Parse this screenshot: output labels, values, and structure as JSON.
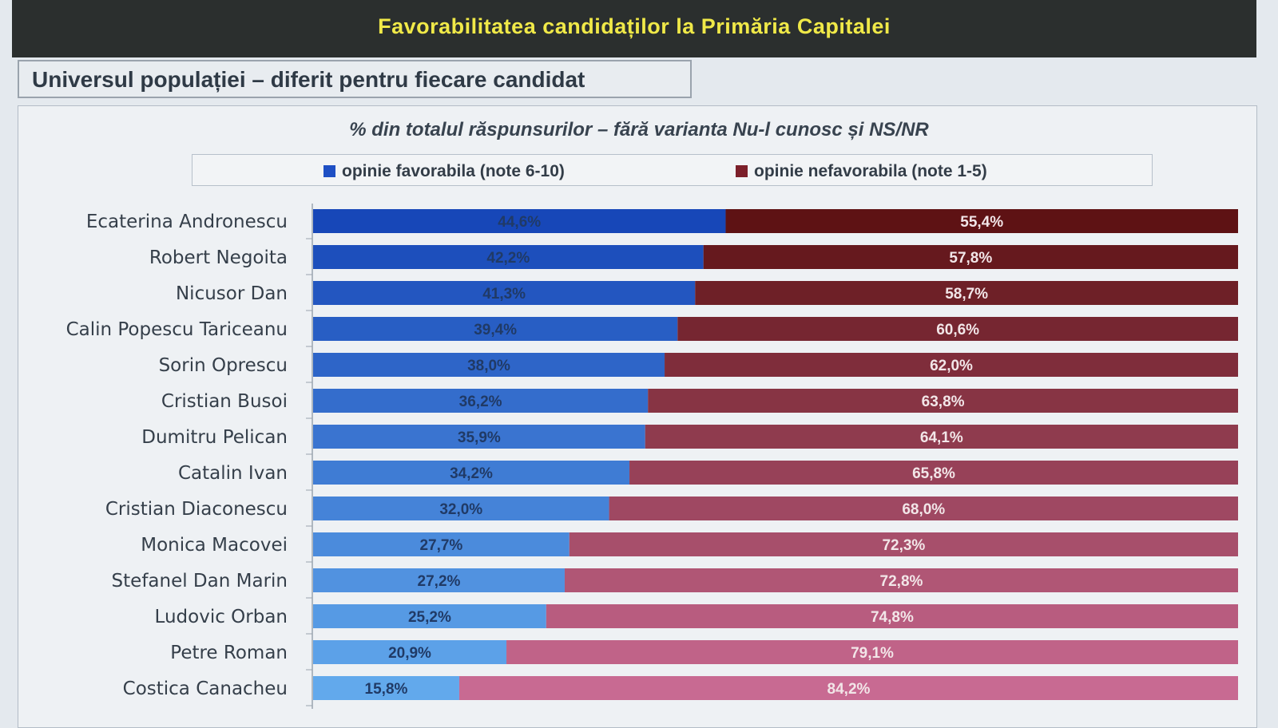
{
  "header": {
    "title": "Favorabilitatea candidaților la Primăria Capitalei",
    "subtitle": "Universul populației – diferit pentru fiecare candidat"
  },
  "colors": {
    "favorable_dark": "#1747b8",
    "favorable_light": "#62a9ec",
    "unfavorable_dark": "#5e1214",
    "unfavorable_light": "#c86a92",
    "title_yellow": "#f0e948"
  },
  "chart_data": {
    "type": "bar",
    "orientation": "horizontal",
    "stacked": true,
    "title": "% din totalul răspunsurilor – fără varianta Nu-l cunosc și NS/NR",
    "legend_position": "top",
    "categories": [
      "Ecaterina Andronescu",
      "Robert Negoita",
      "Nicusor Dan",
      "Calin Popescu Tariceanu",
      "Sorin Oprescu",
      "Cristian Busoi",
      "Dumitru Pelican",
      "Catalin Ivan",
      "Cristian Diaconescu",
      "Monica Macovei",
      "Stefanel Dan Marin",
      "Ludovic Orban",
      "Petre Roman",
      "Costica Canacheu"
    ],
    "series": [
      {
        "name": "opinie favorabila (note 6-10)",
        "values": [
          44.6,
          42.2,
          41.3,
          39.4,
          38.0,
          36.2,
          35.9,
          34.2,
          32.0,
          27.7,
          27.2,
          25.2,
          20.9,
          15.8
        ],
        "labels": [
          "44,6%",
          "42,2%",
          "41,3%",
          "39,4%",
          "38,0%",
          "36,2%",
          "35,9%",
          "34,2%",
          "32,0%",
          "27,7%",
          "27,2%",
          "25,2%",
          "20,9%",
          "15,8%"
        ]
      },
      {
        "name": "opinie nefavorabila (note 1-5)",
        "values": [
          55.4,
          57.8,
          58.7,
          60.6,
          62.0,
          63.8,
          64.1,
          65.8,
          68.0,
          72.3,
          72.8,
          74.8,
          79.1,
          84.2
        ],
        "labels": [
          "55,4%",
          "57,8%",
          "58,7%",
          "60,6%",
          "62,0%",
          "63,8%",
          "64,1%",
          "65,8%",
          "68,0%",
          "72,3%",
          "72,8%",
          "74,8%",
          "79,1%",
          "84,2%"
        ]
      }
    ],
    "xlim": [
      0,
      100
    ],
    "grid": false
  }
}
